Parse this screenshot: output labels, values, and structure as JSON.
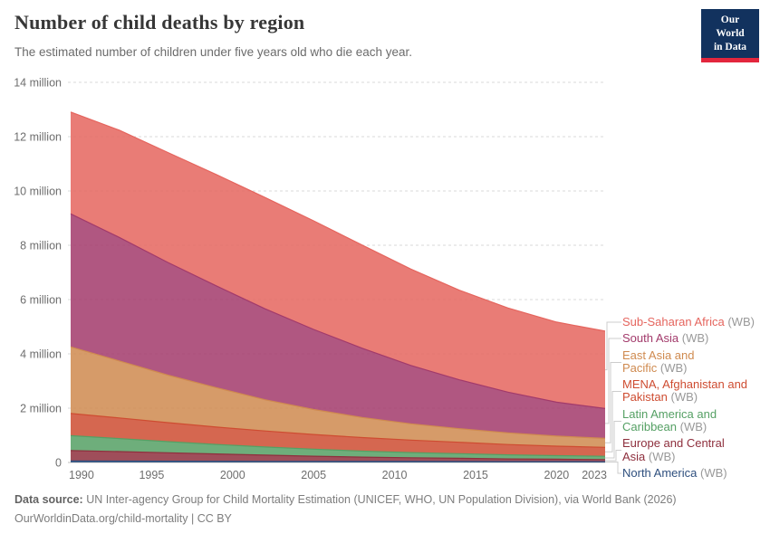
{
  "header": {
    "title": "Number of child deaths by region",
    "subtitle": "The estimated number of children under five years old who die each year.",
    "logo": {
      "line1": "Our World",
      "line2": "in Data",
      "bg_color": "#12325e",
      "accent_color": "#e3263d"
    }
  },
  "chart_data": {
    "type": "area",
    "stacked": true,
    "title": "Number of child deaths by region",
    "values_unit": "millions of child deaths per year",
    "xlim": [
      1990,
      2023
    ],
    "ylim": [
      0,
      14
    ],
    "grid": "dashed horizontal",
    "legend_position": "right",
    "stack_note": "series listed top-to-bottom as in legend; stacked bottom-up in reverse order",
    "x": [
      1990,
      1993,
      1996,
      1999,
      2002,
      2005,
      2008,
      2011,
      2014,
      2017,
      2020,
      2023
    ],
    "series": [
      {
        "label": "Sub-Saharan Africa",
        "suffix": "(WB)",
        "color": "#e5655e",
        "values": [
          3.75,
          3.95,
          4.05,
          4.1,
          4.1,
          4.0,
          3.8,
          3.55,
          3.3,
          3.1,
          2.95,
          2.85
        ]
      },
      {
        "label": "South Asia",
        "suffix": "(WB)",
        "color": "#a23a6b",
        "values": [
          4.9,
          4.55,
          4.15,
          3.75,
          3.35,
          2.95,
          2.55,
          2.15,
          1.8,
          1.5,
          1.25,
          1.1
        ]
      },
      {
        "label": "East Asia and Pacific",
        "suffix": "(WB)",
        "color": "#cf8a4f",
        "values": [
          2.45,
          2.1,
          1.75,
          1.45,
          1.15,
          0.92,
          0.74,
          0.6,
          0.5,
          0.43,
          0.37,
          0.33
        ]
      },
      {
        "label": "MENA, Afghanistan and Pakistan",
        "suffix": "(WB)",
        "color": "#ce4c31",
        "values": [
          0.82,
          0.76,
          0.7,
          0.64,
          0.59,
          0.54,
          0.5,
          0.46,
          0.42,
          0.38,
          0.35,
          0.33
        ]
      },
      {
        "label": "Latin America and Caribbean",
        "suffix": "(WB)",
        "color": "#55a064",
        "values": [
          0.55,
          0.48,
          0.41,
          0.35,
          0.3,
          0.26,
          0.22,
          0.19,
          0.17,
          0.15,
          0.13,
          0.12
        ]
      },
      {
        "label": "Europe and Central Asia",
        "suffix": "(WB)",
        "color": "#8e2f3d",
        "values": [
          0.38,
          0.35,
          0.31,
          0.27,
          0.23,
          0.19,
          0.16,
          0.14,
          0.12,
          0.1,
          0.09,
          0.08
        ]
      },
      {
        "label": "North America",
        "suffix": "(WB)",
        "color": "#2e4f7e",
        "values": [
          0.055,
          0.05,
          0.046,
          0.043,
          0.041,
          0.039,
          0.037,
          0.035,
          0.033,
          0.031,
          0.029,
          0.027
        ]
      }
    ],
    "y_ticks": [
      {
        "v": 0,
        "label": "0"
      },
      {
        "v": 2,
        "label": "2 million"
      },
      {
        "v": 4,
        "label": "4 million"
      },
      {
        "v": 6,
        "label": "6 million"
      },
      {
        "v": 8,
        "label": "8 million"
      },
      {
        "v": 10,
        "label": "10 million"
      },
      {
        "v": 12,
        "label": "12 million"
      },
      {
        "v": 14,
        "label": "14 million"
      }
    ],
    "x_ticks": [
      {
        "v": 1990,
        "label": "1990"
      },
      {
        "v": 1995,
        "label": "1995"
      },
      {
        "v": 2000,
        "label": "2000"
      },
      {
        "v": 2005,
        "label": "2005"
      },
      {
        "v": 2010,
        "label": "2010"
      },
      {
        "v": 2015,
        "label": "2015"
      },
      {
        "v": 2020,
        "label": "2020"
      },
      {
        "v": 2023,
        "label": "2023"
      }
    ]
  },
  "colors": {
    "grid": "#dadada",
    "zero_line": "#bcbcbc",
    "tick_text": "#6e6e6e",
    "suffix_text": "#999999",
    "connector": "#cccccc"
  },
  "footer": {
    "source_label": "Data source:",
    "source_text": "UN Inter-agency Group for Child Mortality Estimation (UNICEF, WHO, UN Population Division), via World Bank (2026)",
    "link_text": "OurWorldinData.org/child-mortality | CC BY"
  }
}
